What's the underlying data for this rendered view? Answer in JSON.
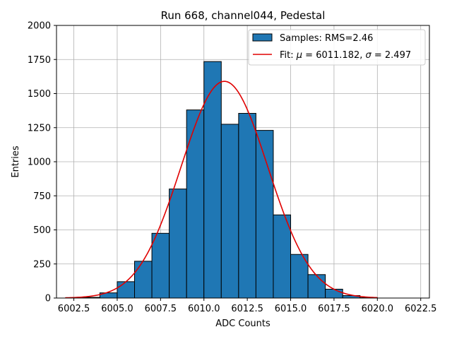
{
  "chart_data": {
    "type": "histogram",
    "title": "Run 668, channel044, Pedestal",
    "xlabel": "ADC Counts",
    "ylabel": "Entries",
    "xlim": [
      6001.5,
      6023.0
    ],
    "ylim": [
      0,
      2000
    ],
    "xticks": [
      6002.5,
      6005.0,
      6007.5,
      6010.0,
      6012.5,
      6015.0,
      6017.5,
      6020.0,
      6022.5
    ],
    "xtick_labels": [
      "6002.5",
      "6005.0",
      "6007.5",
      "6010.0",
      "6012.5",
      "6015.0",
      "6017.5",
      "6020.0",
      "6022.5"
    ],
    "yticks": [
      0,
      250,
      500,
      750,
      1000,
      1250,
      1500,
      1750,
      2000
    ],
    "ytick_labels": [
      "0",
      "250",
      "500",
      "750",
      "1000",
      "1250",
      "1500",
      "1750",
      "2000"
    ],
    "grid": true,
    "bins": [
      {
        "x0": 6002.0,
        "x1": 6003.0,
        "value": 0
      },
      {
        "x0": 6003.0,
        "x1": 6004.0,
        "value": 5
      },
      {
        "x0": 6004.0,
        "x1": 6005.0,
        "value": 38
      },
      {
        "x0": 6005.0,
        "x1": 6006.0,
        "value": 120
      },
      {
        "x0": 6006.0,
        "x1": 6007.0,
        "value": 270
      },
      {
        "x0": 6007.0,
        "x1": 6008.0,
        "value": 475
      },
      {
        "x0": 6008.0,
        "x1": 6009.0,
        "value": 800
      },
      {
        "x0": 6009.0,
        "x1": 6010.0,
        "value": 1380
      },
      {
        "x0": 6010.0,
        "x1": 6011.0,
        "value": 1735
      },
      {
        "x0": 6011.0,
        "x1": 6012.0,
        "value": 1275
      },
      {
        "x0": 6012.0,
        "x1": 6013.0,
        "value": 1355
      },
      {
        "x0": 6013.0,
        "x1": 6014.0,
        "value": 1230
      },
      {
        "x0": 6014.0,
        "x1": 6015.0,
        "value": 610
      },
      {
        "x0": 6015.0,
        "x1": 6016.0,
        "value": 320
      },
      {
        "x0": 6016.0,
        "x1": 6017.0,
        "value": 172
      },
      {
        "x0": 6017.0,
        "x1": 6018.0,
        "value": 65
      },
      {
        "x0": 6018.0,
        "x1": 6019.0,
        "value": 18
      },
      {
        "x0": 6019.0,
        "x1": 6020.0,
        "value": 3
      }
    ],
    "fit": {
      "mu": 6011.182,
      "sigma": 2.497,
      "amplitude": 1590,
      "x_range": [
        6002.0,
        6020.0
      ]
    },
    "series": [
      {
        "name": "Samples: RMS=2.46",
        "color": "#1f77b4"
      },
      {
        "name": "Fit: μ = 6011.182, σ = 2.497",
        "color": "#e00000"
      }
    ],
    "legend": {
      "position": "upper-right",
      "samples_label": "Samples: RMS=2.46",
      "fit_prefix": "Fit: ",
      "mu_symbol": "μ",
      "mu_value": " = 6011.182, ",
      "sigma_symbol": "σ",
      "sigma_value": " = 2.497"
    }
  }
}
